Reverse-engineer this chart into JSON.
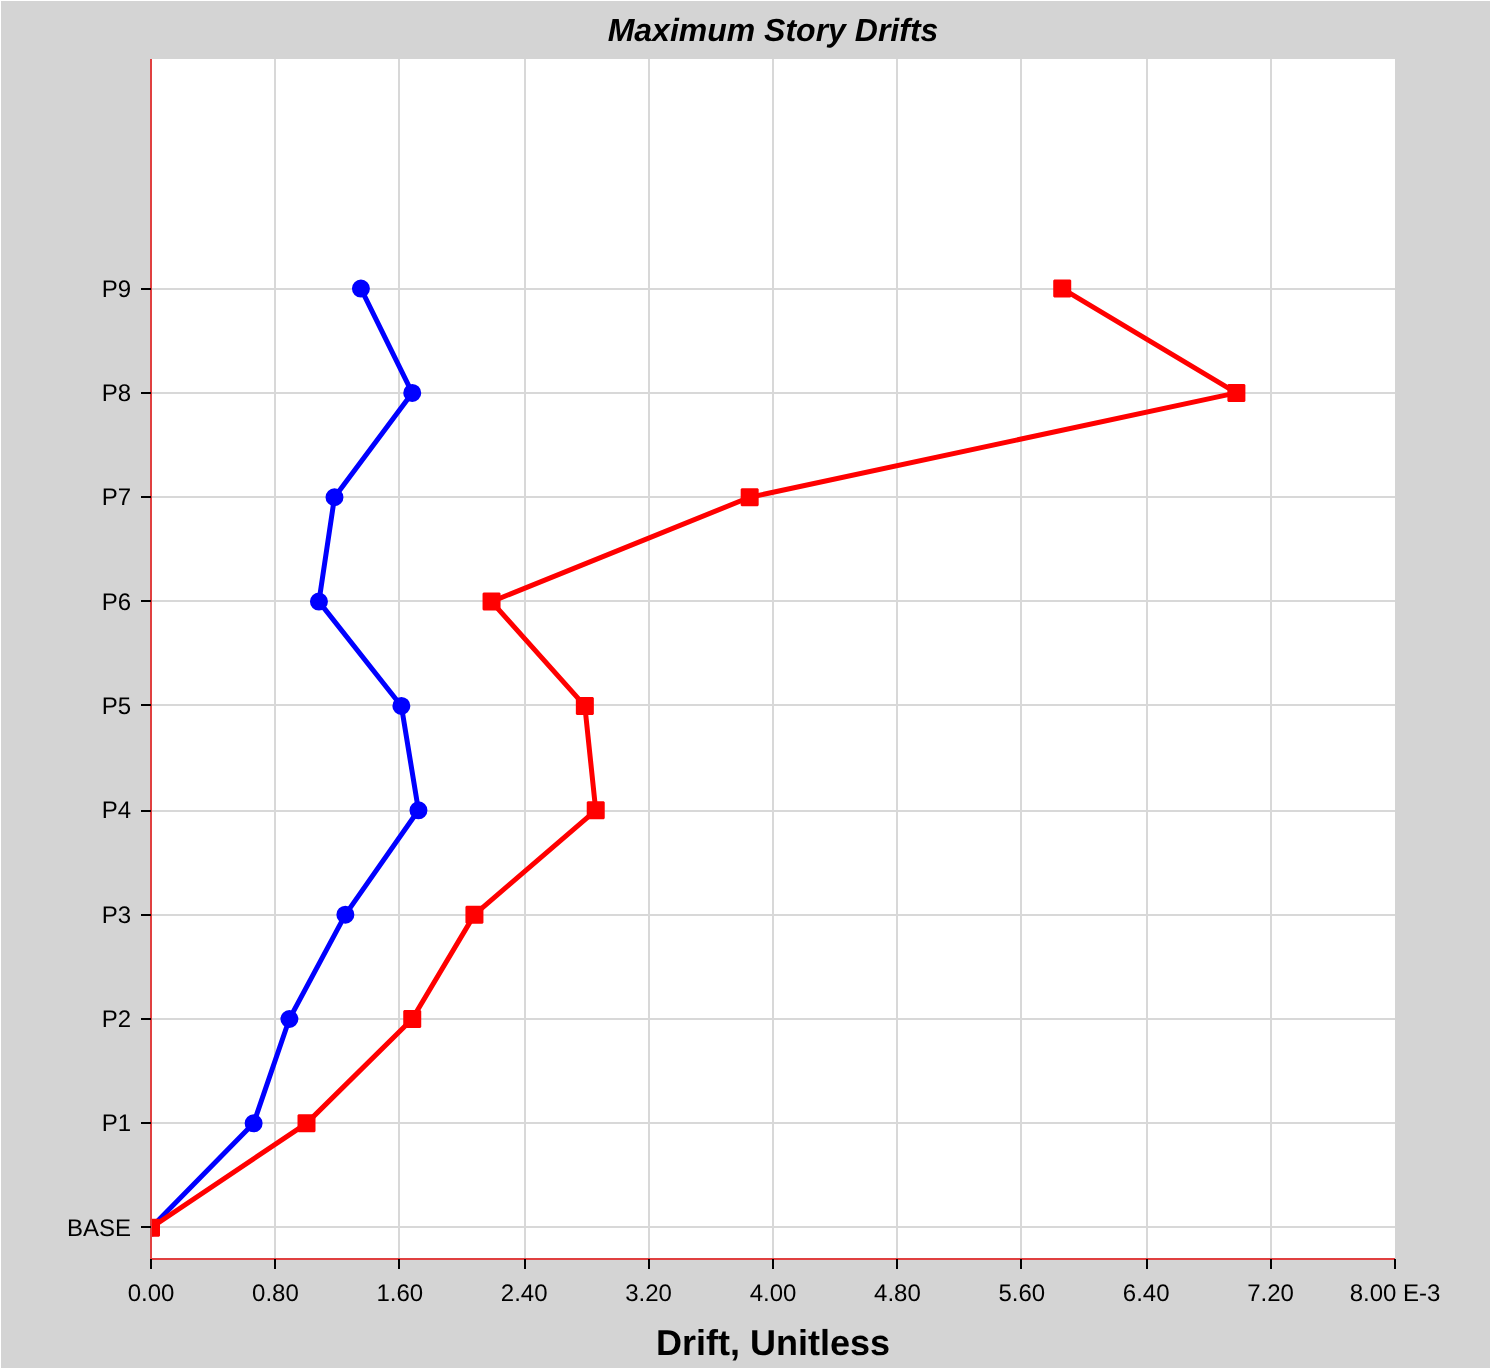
{
  "chart_data": {
    "type": "line",
    "title": "Maximum Story Drifts",
    "xlabel": "Drift, Unitless",
    "orientation": "horizontal",
    "categories": [
      "P9",
      "P8",
      "P7",
      "P6",
      "P5",
      "P4",
      "P3",
      "P2",
      "P1",
      "BASE"
    ],
    "xlim": [
      0,
      8
    ],
    "xticks": [
      {
        "value": 0,
        "label": "0.00"
      },
      {
        "value": 0.8,
        "label": "0.80"
      },
      {
        "value": 1.6,
        "label": "1.60"
      },
      {
        "value": 2.4,
        "label": "2.40"
      },
      {
        "value": 3.2,
        "label": "3.20"
      },
      {
        "value": 4,
        "label": "4.00"
      },
      {
        "value": 4.8,
        "label": "4.80"
      },
      {
        "value": 5.6,
        "label": "5.60"
      },
      {
        "value": 6.4,
        "label": "6.40"
      },
      {
        "value": 7.2,
        "label": "7.20"
      },
      {
        "value": 8,
        "label": "8.00 E-3"
      }
    ],
    "grid": true,
    "line_style": "solid",
    "series": [
      {
        "color": "#0000ff",
        "marker": "circle",
        "values": [
          1.35,
          1.68,
          1.18,
          1.08,
          1.61,
          1.72,
          1.25,
          0.89,
          0.66,
          0
        ]
      },
      {
        "color": "#ff0000",
        "marker": "square",
        "values": [
          5.86,
          6.98,
          3.85,
          2.19,
          2.79,
          2.86,
          2.08,
          1.68,
          1.0,
          0
        ]
      }
    ]
  }
}
